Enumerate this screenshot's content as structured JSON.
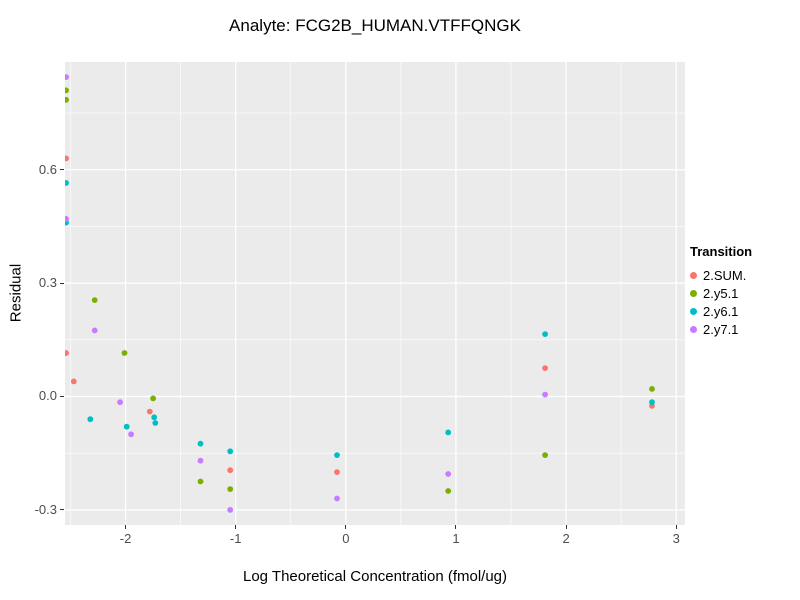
{
  "chart_data": {
    "type": "scatter",
    "title": "Analyte: FCG2B_HUMAN.VTFFQNGK",
    "xlabel": "Log Theoretical Concentration (fmol/ug)",
    "ylabel": "Residual",
    "legend_title": "Transition",
    "legend_position": "right",
    "panel_bg": "#EBEBEB",
    "grid_color": "#FFFFFF",
    "tick_color": "#333333",
    "tick_label_color": "#4d4d4d",
    "grid": true,
    "xlim": [
      -2.55,
      3.08
    ],
    "ylim": [
      -0.34,
      0.885
    ],
    "x_major_ticks": [
      -2,
      -1,
      0,
      1,
      2,
      3
    ],
    "x_tick_labels": [
      "-2",
      "-1",
      "0",
      "1",
      "2",
      "3"
    ],
    "x_minor_ticks": [
      -2.5,
      -1.5,
      -0.5,
      0.5,
      1.5,
      2.5
    ],
    "y_major_ticks": [
      0.6,
      0.3,
      0.0,
      -0.3
    ],
    "y_tick_labels": [
      "0.6",
      "0.3",
      "0.0",
      "-0.3"
    ],
    "y_minor_ticks": [
      0.75,
      0.45,
      0.15,
      -0.15
    ],
    "series": [
      {
        "name": "2.SUM.",
        "color": "#F8766D",
        "points": [
          [
            -2.54,
            0.63
          ],
          [
            -2.54,
            0.115
          ],
          [
            -2.47,
            0.04
          ],
          [
            -1.78,
            -0.04
          ],
          [
            -1.05,
            -0.195
          ],
          [
            -0.08,
            -0.2
          ],
          [
            1.81,
            0.075
          ],
          [
            2.78,
            -0.025
          ]
        ]
      },
      {
        "name": "2.y5.1",
        "color": "#7CAE00",
        "points": [
          [
            -2.54,
            0.81
          ],
          [
            -2.54,
            0.785
          ],
          [
            -2.28,
            0.255
          ],
          [
            -2.01,
            0.115
          ],
          [
            -1.75,
            -0.005
          ],
          [
            -1.32,
            -0.225
          ],
          [
            -1.05,
            -0.245
          ],
          [
            0.93,
            -0.25
          ],
          [
            1.81,
            -0.155
          ],
          [
            2.78,
            0.02
          ]
        ]
      },
      {
        "name": "2.y6.1",
        "color": "#00BFC4",
        "points": [
          [
            -2.54,
            0.565
          ],
          [
            -2.54,
            0.46
          ],
          [
            -2.32,
            -0.06
          ],
          [
            -1.99,
            -0.08
          ],
          [
            -1.74,
            -0.055
          ],
          [
            -1.73,
            -0.07
          ],
          [
            -1.32,
            -0.125
          ],
          [
            -1.05,
            -0.145
          ],
          [
            -0.08,
            -0.155
          ],
          [
            0.93,
            -0.095
          ],
          [
            1.81,
            0.165
          ],
          [
            2.78,
            -0.015
          ]
        ]
      },
      {
        "name": "2.y7.1",
        "color": "#C77CFF",
        "points": [
          [
            -2.54,
            0.845
          ],
          [
            -2.54,
            0.47
          ],
          [
            -2.28,
            0.175
          ],
          [
            -2.05,
            -0.015
          ],
          [
            -1.95,
            -0.1
          ],
          [
            -1.32,
            -0.17
          ],
          [
            -1.05,
            -0.3
          ],
          [
            -0.08,
            -0.27
          ],
          [
            0.93,
            -0.205
          ],
          [
            1.81,
            0.005
          ]
        ]
      }
    ]
  }
}
